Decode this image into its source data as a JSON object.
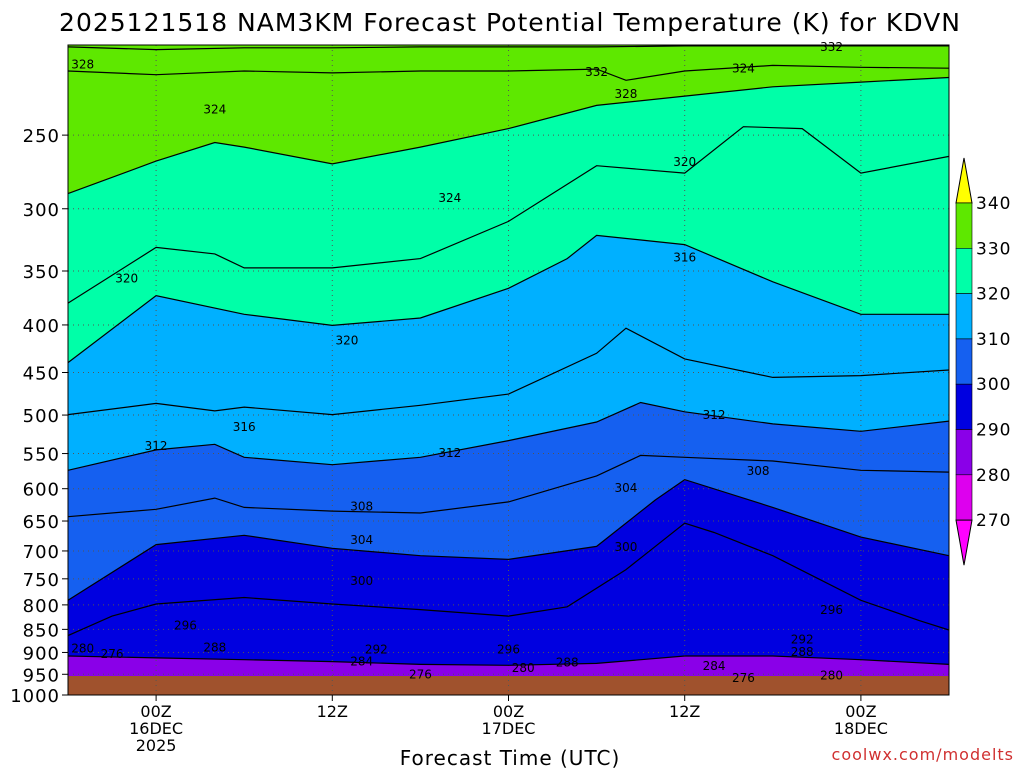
{
  "chart_data": {
    "type": "heatmap",
    "title": "2025121518 NAM3KM Forecast Potential Temperature (K) for KDVN",
    "xlabel": "Forecast Time (UTC)",
    "ylabel": "",
    "y_axis": {
      "scale": "log",
      "inverted": true,
      "range": [
        1000,
        200
      ],
      "ticks": [
        250,
        300,
        350,
        400,
        450,
        500,
        550,
        600,
        650,
        700,
        750,
        800,
        850,
        900,
        950,
        1000
      ]
    },
    "x_axis": {
      "unit": "hours_since_2025121518",
      "range": [
        0,
        60
      ],
      "ticks": [
        {
          "hour": 6,
          "lines": [
            "00Z",
            "16DEC",
            "2025"
          ]
        },
        {
          "hour": 18,
          "lines": [
            "12Z"
          ]
        },
        {
          "hour": 30,
          "lines": [
            "00Z",
            "17DEC"
          ]
        },
        {
          "hour": 42,
          "lines": [
            "12Z"
          ]
        },
        {
          "hour": 54,
          "lines": [
            "00Z",
            "18DEC"
          ]
        }
      ]
    },
    "grid": true,
    "legend_position": "right",
    "colorbar": {
      "levels": [
        270,
        280,
        290,
        300,
        310,
        320,
        330,
        340
      ],
      "colors": [
        "#ff00ff",
        "#dd00ee",
        "#8a00e8",
        "#0000e0",
        "#1560f0",
        "#00b0ff",
        "#00ffa8",
        "#5ee800",
        "#ffff00"
      ]
    },
    "series": [
      {
        "name": "292",
        "level": 292,
        "values": [
          [
            0,
            0.42
          ],
          [
            6,
            0.4
          ],
          [
            12,
            0.38
          ],
          [
            18,
            0.36
          ],
          [
            24,
            0.33
          ],
          [
            30,
            0.32
          ],
          [
            36,
            0.34
          ],
          [
            42,
            0.42
          ],
          [
            48,
            0.42
          ],
          [
            54,
            0.38
          ],
          [
            60,
            0.33
          ]
        ]
      },
      {
        "name": "296",
        "level": 296,
        "values": [
          [
            0,
            0.64
          ],
          [
            3,
            0.85
          ],
          [
            6,
            0.98
          ],
          [
            12,
            1.05
          ],
          [
            18,
            0.98
          ],
          [
            24,
            0.92
          ],
          [
            30,
            0.85
          ],
          [
            34,
            0.95
          ],
          [
            38,
            1.35
          ],
          [
            42,
            1.85
          ],
          [
            44,
            1.75
          ],
          [
            48,
            1.5
          ],
          [
            54,
            1.02
          ],
          [
            58,
            0.8
          ],
          [
            60,
            0.7
          ]
        ]
      },
      {
        "name": "300",
        "level": 300,
        "values": [
          [
            0,
            1.02
          ],
          [
            6,
            1.62
          ],
          [
            12,
            1.72
          ],
          [
            18,
            1.58
          ],
          [
            24,
            1.5
          ],
          [
            30,
            1.46
          ],
          [
            36,
            1.6
          ],
          [
            40,
            2.1
          ],
          [
            42,
            2.32
          ],
          [
            48,
            2.02
          ],
          [
            54,
            1.7
          ],
          [
            60,
            1.5
          ]
        ]
      },
      {
        "name": "304",
        "level": 304,
        "values": [
          [
            0,
            1.92
          ],
          [
            6,
            2.0
          ],
          [
            10,
            2.12
          ],
          [
            12,
            2.02
          ],
          [
            18,
            1.98
          ],
          [
            24,
            1.96
          ],
          [
            30,
            2.08
          ],
          [
            36,
            2.36
          ],
          [
            39,
            2.58
          ],
          [
            42,
            2.56
          ],
          [
            48,
            2.52
          ],
          [
            54,
            2.42
          ],
          [
            60,
            2.4
          ]
        ]
      },
      {
        "name": "308",
        "level": 308,
        "values": [
          [
            0,
            2.42
          ],
          [
            6,
            2.64
          ],
          [
            10,
            2.7
          ],
          [
            12,
            2.56
          ],
          [
            18,
            2.48
          ],
          [
            24,
            2.56
          ],
          [
            30,
            2.74
          ],
          [
            36,
            2.94
          ],
          [
            39,
            3.15
          ],
          [
            42,
            3.05
          ],
          [
            48,
            2.92
          ],
          [
            54,
            2.84
          ],
          [
            60,
            2.95
          ]
        ]
      },
      {
        "name": "312",
        "level": 312,
        "values": [
          [
            0,
            3.02
          ],
          [
            6,
            3.14
          ],
          [
            10,
            3.06
          ],
          [
            12,
            3.1
          ],
          [
            18,
            3.02
          ],
          [
            24,
            3.12
          ],
          [
            30,
            3.24
          ],
          [
            36,
            3.68
          ],
          [
            38,
            3.95
          ],
          [
            42,
            3.62
          ],
          [
            48,
            3.42
          ],
          [
            54,
            3.44
          ],
          [
            60,
            3.5
          ]
        ]
      },
      {
        "name": "316",
        "level": 316,
        "values": [
          [
            0,
            3.58
          ],
          [
            6,
            4.3
          ],
          [
            12,
            4.1
          ],
          [
            18,
            3.98
          ],
          [
            24,
            4.06
          ],
          [
            30,
            4.38
          ],
          [
            34,
            4.7
          ],
          [
            36,
            4.95
          ],
          [
            42,
            4.85
          ],
          [
            48,
            4.45
          ],
          [
            54,
            4.1
          ],
          [
            60,
            4.1
          ]
        ]
      },
      {
        "name": "320",
        "level": 320,
        "values": [
          [
            0,
            4.22
          ],
          [
            6,
            4.82
          ],
          [
            10,
            4.75
          ],
          [
            12,
            4.6
          ],
          [
            18,
            4.6
          ],
          [
            24,
            4.7
          ],
          [
            30,
            5.1
          ],
          [
            36,
            5.7
          ],
          [
            42,
            5.62
          ],
          [
            46,
            6.12
          ],
          [
            50,
            6.1
          ],
          [
            54,
            5.62
          ],
          [
            60,
            5.8
          ]
        ]
      },
      {
        "name": "324",
        "level": 324,
        "values": [
          [
            0,
            5.4
          ],
          [
            6,
            5.75
          ],
          [
            10,
            5.95
          ],
          [
            12,
            5.9
          ],
          [
            18,
            5.72
          ],
          [
            24,
            5.9
          ],
          [
            30,
            6.1
          ],
          [
            36,
            6.35
          ],
          [
            42,
            6.45
          ],
          [
            48,
            6.55
          ],
          [
            54,
            6.6
          ],
          [
            60,
            6.65
          ]
        ]
      },
      {
        "name": "328",
        "level": 328,
        "values": [
          [
            0,
            6.72
          ],
          [
            6,
            6.68
          ],
          [
            12,
            6.72
          ],
          [
            18,
            6.7
          ],
          [
            24,
            6.72
          ],
          [
            30,
            6.72
          ],
          [
            36,
            6.74
          ],
          [
            38,
            6.62
          ],
          [
            42,
            6.72
          ],
          [
            48,
            6.78
          ],
          [
            54,
            6.76
          ],
          [
            60,
            6.75
          ]
        ]
      },
      {
        "name": "332",
        "level": 332,
        "values": [
          [
            0,
            6.98
          ],
          [
            6,
            6.95
          ],
          [
            12,
            6.97
          ],
          [
            18,
            6.97
          ],
          [
            24,
            6.98
          ],
          [
            30,
            6.98
          ],
          [
            36,
            6.98
          ],
          [
            42,
            6.99
          ],
          [
            48,
            6.99
          ],
          [
            54,
            6.99
          ],
          [
            60,
            6.99
          ]
        ]
      }
    ],
    "contour_labels": [
      {
        "text": "328",
        "hour": 1,
        "pressure": 212
      },
      {
        "text": "332",
        "hour": 52,
        "pressure": 203
      },
      {
        "text": "332",
        "hour": 36,
        "pressure": 216
      },
      {
        "text": "324",
        "hour": 46,
        "pressure": 214
      },
      {
        "text": "328",
        "hour": 38,
        "pressure": 228
      },
      {
        "text": "324",
        "hour": 10,
        "pressure": 237
      },
      {
        "text": "320",
        "hour": 42,
        "pressure": 270
      },
      {
        "text": "324",
        "hour": 26,
        "pressure": 295
      },
      {
        "text": "316",
        "hour": 42,
        "pressure": 342
      },
      {
        "text": "320",
        "hour": 4,
        "pressure": 360
      },
      {
        "text": "320",
        "hour": 19,
        "pressure": 420
      },
      {
        "text": "316",
        "hour": 12,
        "pressure": 520
      },
      {
        "text": "312",
        "hour": 44,
        "pressure": 505
      },
      {
        "text": "312",
        "hour": 6,
        "pressure": 545
      },
      {
        "text": "312",
        "hour": 26,
        "pressure": 555
      },
      {
        "text": "308",
        "hour": 47,
        "pressure": 580
      },
      {
        "text": "304",
        "hour": 38,
        "pressure": 605
      },
      {
        "text": "308",
        "hour": 20,
        "pressure": 633
      },
      {
        "text": "304",
        "hour": 20,
        "pressure": 688
      },
      {
        "text": "300",
        "hour": 38,
        "pressure": 700
      },
      {
        "text": "300",
        "hour": 20,
        "pressure": 762
      },
      {
        "text": "296",
        "hour": 52,
        "pressure": 818
      },
      {
        "text": "296",
        "hour": 8,
        "pressure": 850
      },
      {
        "text": "292",
        "hour": 50,
        "pressure": 880
      },
      {
        "text": "288",
        "hour": 50,
        "pressure": 908
      },
      {
        "text": "280",
        "hour": 1,
        "pressure": 900
      },
      {
        "text": "276",
        "hour": 3,
        "pressure": 912
      },
      {
        "text": "288",
        "hour": 10,
        "pressure": 898
      },
      {
        "text": "292",
        "hour": 21,
        "pressure": 902
      },
      {
        "text": "296",
        "hour": 30,
        "pressure": 902
      },
      {
        "text": "284",
        "hour": 20,
        "pressure": 930
      },
      {
        "text": "288",
        "hour": 34,
        "pressure": 932
      },
      {
        "text": "280",
        "hour": 31,
        "pressure": 945
      },
      {
        "text": "284",
        "hour": 44,
        "pressure": 940
      },
      {
        "text": "276",
        "hour": 24,
        "pressure": 960
      },
      {
        "text": "276",
        "hour": 46,
        "pressure": 968
      },
      {
        "text": "280",
        "hour": 52,
        "pressure": 962
      }
    ]
  },
  "credit": "coolwx.com/modelts"
}
